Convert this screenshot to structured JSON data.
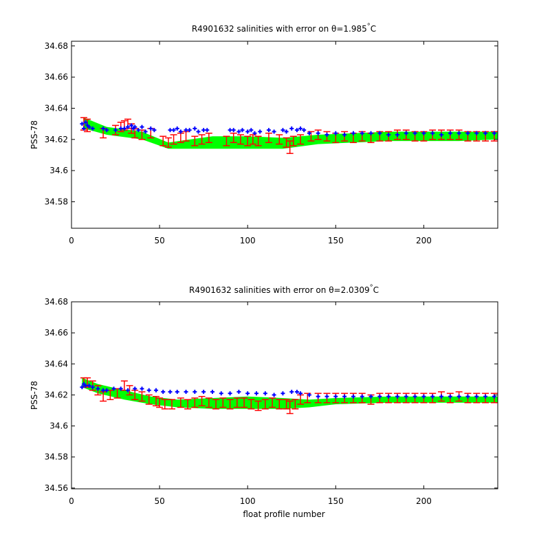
{
  "chart_data": [
    {
      "type": "scatter",
      "title": "R4901632 salinities with error on θ=1.985°C",
      "title_main": "R4901632 salinities with error on θ=1.985",
      "title_degree": "°",
      "title_unit": "C",
      "xlabel": "",
      "ylabel": "PSS-78",
      "xlim": [
        0,
        242
      ],
      "ylim": [
        34.563,
        34.683
      ],
      "xticks": [
        0,
        50,
        100,
        150,
        200
      ],
      "yticks": [
        34.58,
        34.6,
        34.62,
        34.64,
        34.66,
        34.68
      ],
      "ytick_labels": [
        "34.58",
        "34.6",
        "34.62",
        "34.64",
        "34.66",
        "34.68"
      ],
      "grid": false,
      "colors": {
        "band": "#00ff00",
        "calibrated": "#ff0000",
        "float": "#0000ff"
      },
      "band_upper": [
        [
          7,
          34.634
        ],
        [
          20,
          34.628
        ],
        [
          40,
          34.625
        ],
        [
          55,
          34.618
        ],
        [
          80,
          34.622
        ],
        [
          100,
          34.622
        ],
        [
          120,
          34.621
        ],
        [
          140,
          34.623
        ],
        [
          160,
          34.624
        ],
        [
          180,
          34.625
        ],
        [
          200,
          34.625
        ],
        [
          220,
          34.625
        ],
        [
          242,
          34.625
        ]
      ],
      "band_lower": [
        [
          7,
          34.627
        ],
        [
          20,
          34.623
        ],
        [
          40,
          34.62
        ],
        [
          55,
          34.614
        ],
        [
          80,
          34.614
        ],
        [
          100,
          34.614
        ],
        [
          120,
          34.614
        ],
        [
          140,
          34.617
        ],
        [
          160,
          34.618
        ],
        [
          180,
          34.619
        ],
        [
          200,
          34.619
        ],
        [
          220,
          34.619
        ],
        [
          242,
          34.62
        ]
      ],
      "float_points": [
        [
          6,
          34.63
        ],
        [
          7,
          34.627
        ],
        [
          8,
          34.631
        ],
        [
          9,
          34.629
        ],
        [
          10,
          34.628
        ],
        [
          12,
          34.627
        ],
        [
          18,
          34.627
        ],
        [
          20,
          34.626
        ],
        [
          25,
          34.626
        ],
        [
          28,
          34.627
        ],
        [
          30,
          34.627
        ],
        [
          32,
          34.628
        ],
        [
          34,
          34.629
        ],
        [
          35,
          34.627
        ],
        [
          36,
          34.628
        ],
        [
          38,
          34.626
        ],
        [
          40,
          34.628
        ],
        [
          42,
          34.625
        ],
        [
          45,
          34.627
        ],
        [
          47,
          34.626
        ],
        [
          56,
          34.626
        ],
        [
          58,
          34.626
        ],
        [
          60,
          34.627
        ],
        [
          62,
          34.625
        ],
        [
          65,
          34.626
        ],
        [
          67,
          34.626
        ],
        [
          70,
          34.627
        ],
        [
          72,
          34.625
        ],
        [
          75,
          34.626
        ],
        [
          77,
          34.626
        ],
        [
          90,
          34.626
        ],
        [
          92,
          34.626
        ],
        [
          95,
          34.625
        ],
        [
          97,
          34.626
        ],
        [
          100,
          34.625
        ],
        [
          102,
          34.626
        ],
        [
          104,
          34.624
        ],
        [
          107,
          34.625
        ],
        [
          112,
          34.626
        ],
        [
          115,
          34.625
        ],
        [
          120,
          34.626
        ],
        [
          122,
          34.625
        ],
        [
          125,
          34.627
        ],
        [
          128,
          34.626
        ],
        [
          130,
          34.627
        ],
        [
          132,
          34.626
        ],
        [
          135,
          34.624
        ],
        [
          140,
          34.624
        ],
        [
          145,
          34.623
        ],
        [
          150,
          34.624
        ],
        [
          155,
          34.623
        ],
        [
          160,
          34.624
        ],
        [
          165,
          34.624
        ],
        [
          170,
          34.624
        ],
        [
          175,
          34.624
        ],
        [
          180,
          34.623
        ],
        [
          185,
          34.623
        ],
        [
          190,
          34.624
        ],
        [
          195,
          34.624
        ],
        [
          200,
          34.624
        ],
        [
          205,
          34.624
        ],
        [
          210,
          34.623
        ],
        [
          215,
          34.624
        ],
        [
          220,
          34.624
        ],
        [
          225,
          34.624
        ],
        [
          230,
          34.624
        ],
        [
          235,
          34.624
        ],
        [
          240,
          34.624
        ]
      ],
      "calibrated_points": [
        [
          7,
          34.63,
          0.004
        ],
        [
          9,
          34.629,
          0.004
        ],
        [
          18,
          34.624,
          0.003
        ],
        [
          25,
          34.626,
          0.003
        ],
        [
          28,
          34.628,
          0.003
        ],
        [
          30,
          34.629,
          0.003
        ],
        [
          32,
          34.63,
          0.003
        ],
        [
          34,
          34.627,
          0.003
        ],
        [
          36,
          34.624,
          0.003
        ],
        [
          40,
          34.623,
          0.003
        ],
        [
          45,
          34.624,
          0.003
        ],
        [
          52,
          34.619,
          0.003
        ],
        [
          55,
          34.618,
          0.003
        ],
        [
          58,
          34.62,
          0.003
        ],
        [
          62,
          34.621,
          0.003
        ],
        [
          65,
          34.622,
          0.003
        ],
        [
          70,
          34.619,
          0.003
        ],
        [
          74,
          34.62,
          0.003
        ],
        [
          78,
          34.621,
          0.003
        ],
        [
          88,
          34.619,
          0.003
        ],
        [
          92,
          34.621,
          0.003
        ],
        [
          96,
          34.62,
          0.003
        ],
        [
          100,
          34.619,
          0.003
        ],
        [
          103,
          34.62,
          0.003
        ],
        [
          106,
          34.619,
          0.003
        ],
        [
          112,
          34.621,
          0.003
        ],
        [
          118,
          34.62,
          0.003
        ],
        [
          122,
          34.618,
          0.003
        ],
        [
          124,
          34.615,
          0.004
        ],
        [
          126,
          34.619,
          0.003
        ],
        [
          130,
          34.62,
          0.003
        ],
        [
          136,
          34.622,
          0.003
        ],
        [
          140,
          34.623,
          0.003
        ],
        [
          145,
          34.622,
          0.003
        ],
        [
          150,
          34.621,
          0.003
        ],
        [
          155,
          34.622,
          0.003
        ],
        [
          160,
          34.621,
          0.003
        ],
        [
          165,
          34.622,
          0.003
        ],
        [
          170,
          34.621,
          0.003
        ],
        [
          175,
          34.622,
          0.003
        ],
        [
          180,
          34.622,
          0.003
        ],
        [
          185,
          34.623,
          0.003
        ],
        [
          190,
          34.623,
          0.003
        ],
        [
          195,
          34.622,
          0.003
        ],
        [
          200,
          34.622,
          0.003
        ],
        [
          205,
          34.623,
          0.003
        ],
        [
          210,
          34.623,
          0.003
        ],
        [
          215,
          34.623,
          0.003
        ],
        [
          220,
          34.623,
          0.003
        ],
        [
          225,
          34.622,
          0.003
        ],
        [
          230,
          34.622,
          0.003
        ],
        [
          235,
          34.622,
          0.003
        ],
        [
          240,
          34.622,
          0.003
        ]
      ]
    },
    {
      "type": "scatter",
      "title": "R4901632 salinities with error on θ=2.0309°C",
      "title_main": "R4901632 salinities with error on θ=2.0309",
      "title_degree": "°",
      "title_unit": "C",
      "xlabel": "float profile number",
      "ylabel": "PSS-78",
      "xlim": [
        0,
        242
      ],
      "ylim": [
        34.5595,
        34.68
      ],
      "xticks": [
        0,
        50,
        100,
        150,
        200
      ],
      "yticks": [
        34.56,
        34.58,
        34.6,
        34.62,
        34.64,
        34.66,
        34.68
      ],
      "ytick_labels": [
        "34.56",
        "34.58",
        "34.6",
        "34.62",
        "34.64",
        "34.66",
        "34.68"
      ],
      "grid": false,
      "colors": {
        "band": "#00ff00",
        "calibrated": "#ff0000",
        "float": "#0000ff"
      },
      "band_upper": [
        [
          6,
          34.631
        ],
        [
          15,
          34.627
        ],
        [
          30,
          34.623
        ],
        [
          45,
          34.619
        ],
        [
          60,
          34.617
        ],
        [
          80,
          34.618
        ],
        [
          100,
          34.619
        ],
        [
          120,
          34.618
        ],
        [
          135,
          34.617
        ],
        [
          150,
          34.618
        ],
        [
          180,
          34.619
        ],
        [
          210,
          34.619
        ],
        [
          242,
          34.619
        ]
      ],
      "band_lower": [
        [
          6,
          34.625
        ],
        [
          15,
          34.621
        ],
        [
          30,
          34.617
        ],
        [
          45,
          34.614
        ],
        [
          60,
          34.612
        ],
        [
          80,
          34.611
        ],
        [
          100,
          34.611
        ],
        [
          120,
          34.611
        ],
        [
          135,
          34.612
        ],
        [
          150,
          34.614
        ],
        [
          180,
          34.615
        ],
        [
          210,
          34.615
        ],
        [
          242,
          34.615
        ]
      ],
      "float_points": [
        [
          6,
          34.625
        ],
        [
          7,
          34.627
        ],
        [
          8,
          34.626
        ],
        [
          10,
          34.626
        ],
        [
          12,
          34.625
        ],
        [
          15,
          34.624
        ],
        [
          18,
          34.623
        ],
        [
          20,
          34.623
        ],
        [
          24,
          34.624
        ],
        [
          28,
          34.624
        ],
        [
          32,
          34.623
        ],
        [
          36,
          34.624
        ],
        [
          40,
          34.624
        ],
        [
          44,
          34.623
        ],
        [
          48,
          34.623
        ],
        [
          52,
          34.622
        ],
        [
          56,
          34.622
        ],
        [
          60,
          34.622
        ],
        [
          65,
          34.622
        ],
        [
          70,
          34.622
        ],
        [
          75,
          34.622
        ],
        [
          80,
          34.622
        ],
        [
          85,
          34.621
        ],
        [
          90,
          34.621
        ],
        [
          95,
          34.622
        ],
        [
          100,
          34.621
        ],
        [
          105,
          34.621
        ],
        [
          110,
          34.621
        ],
        [
          115,
          34.62
        ],
        [
          120,
          34.621
        ],
        [
          125,
          34.622
        ],
        [
          128,
          34.622
        ],
        [
          130,
          34.621
        ],
        [
          135,
          34.62
        ],
        [
          140,
          34.619
        ],
        [
          145,
          34.619
        ],
        [
          150,
          34.619
        ],
        [
          155,
          34.619
        ],
        [
          160,
          34.619
        ],
        [
          165,
          34.619
        ],
        [
          170,
          34.619
        ],
        [
          175,
          34.619
        ],
        [
          180,
          34.619
        ],
        [
          185,
          34.619
        ],
        [
          190,
          34.619
        ],
        [
          195,
          34.619
        ],
        [
          200,
          34.619
        ],
        [
          205,
          34.619
        ],
        [
          210,
          34.619
        ],
        [
          215,
          34.619
        ],
        [
          220,
          34.619
        ],
        [
          225,
          34.619
        ],
        [
          230,
          34.619
        ],
        [
          235,
          34.619
        ],
        [
          240,
          34.619
        ]
      ],
      "calibrated_points": [
        [
          7,
          34.628,
          0.003
        ],
        [
          9,
          34.628,
          0.003
        ],
        [
          12,
          34.626,
          0.003
        ],
        [
          15,
          34.623,
          0.003
        ],
        [
          18,
          34.619,
          0.003
        ],
        [
          22,
          34.62,
          0.003
        ],
        [
          26,
          34.621,
          0.003
        ],
        [
          30,
          34.626,
          0.003
        ],
        [
          33,
          34.623,
          0.003
        ],
        [
          36,
          34.62,
          0.003
        ],
        [
          40,
          34.619,
          0.003
        ],
        [
          44,
          34.617,
          0.003
        ],
        [
          48,
          34.616,
          0.003
        ],
        [
          50,
          34.615,
          0.003
        ],
        [
          53,
          34.614,
          0.003
        ],
        [
          57,
          34.614,
          0.003
        ],
        [
          62,
          34.615,
          0.003
        ],
        [
          66,
          34.614,
          0.003
        ],
        [
          70,
          34.615,
          0.003
        ],
        [
          74,
          34.616,
          0.003
        ],
        [
          78,
          34.615,
          0.003
        ],
        [
          82,
          34.614,
          0.003
        ],
        [
          86,
          34.615,
          0.003
        ],
        [
          90,
          34.614,
          0.003
        ],
        [
          94,
          34.615,
          0.003
        ],
        [
          98,
          34.615,
          0.003
        ],
        [
          102,
          34.614,
          0.003
        ],
        [
          106,
          34.613,
          0.003
        ],
        [
          110,
          34.614,
          0.003
        ],
        [
          114,
          34.615,
          0.003
        ],
        [
          118,
          34.614,
          0.003
        ],
        [
          122,
          34.614,
          0.003
        ],
        [
          124,
          34.612,
          0.004
        ],
        [
          127,
          34.614,
          0.003
        ],
        [
          130,
          34.617,
          0.003
        ],
        [
          134,
          34.618,
          0.003
        ],
        [
          140,
          34.618,
          0.003
        ],
        [
          145,
          34.618,
          0.003
        ],
        [
          150,
          34.618,
          0.003
        ],
        [
          155,
          34.618,
          0.003
        ],
        [
          160,
          34.618,
          0.003
        ],
        [
          165,
          34.618,
          0.003
        ],
        [
          170,
          34.617,
          0.003
        ],
        [
          175,
          34.618,
          0.003
        ],
        [
          180,
          34.618,
          0.003
        ],
        [
          185,
          34.618,
          0.003
        ],
        [
          190,
          34.618,
          0.003
        ],
        [
          195,
          34.618,
          0.003
        ],
        [
          200,
          34.618,
          0.003
        ],
        [
          205,
          34.618,
          0.003
        ],
        [
          210,
          34.619,
          0.003
        ],
        [
          215,
          34.618,
          0.003
        ],
        [
          220,
          34.619,
          0.003
        ],
        [
          225,
          34.618,
          0.003
        ],
        [
          230,
          34.618,
          0.003
        ],
        [
          235,
          34.618,
          0.003
        ],
        [
          240,
          34.618,
          0.003
        ]
      ]
    }
  ]
}
